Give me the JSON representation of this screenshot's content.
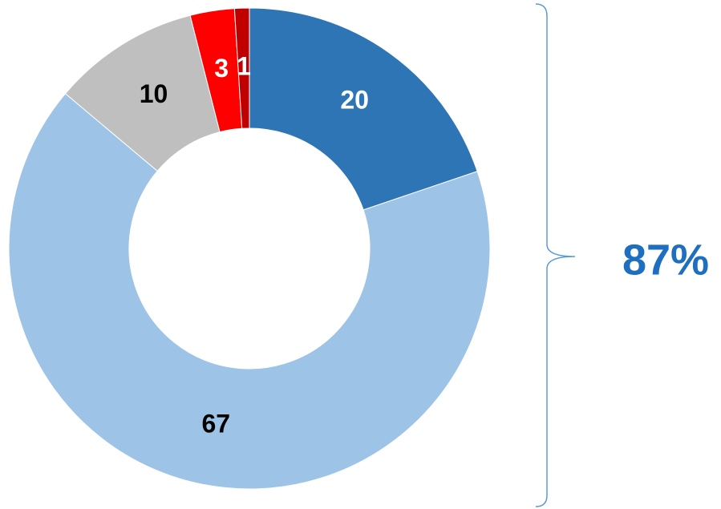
{
  "chart_data": {
    "type": "donut",
    "values": [
      20,
      67,
      10,
      3,
      1
    ],
    "colors": [
      "#2e75b6",
      "#9dc3e6",
      "#bfbfbf",
      "#ff0000",
      "#c00000"
    ],
    "label_colors": [
      "#ffffff",
      "#000000",
      "#000000",
      "#ffffff",
      "#ffffff"
    ],
    "annotation": "87%"
  }
}
